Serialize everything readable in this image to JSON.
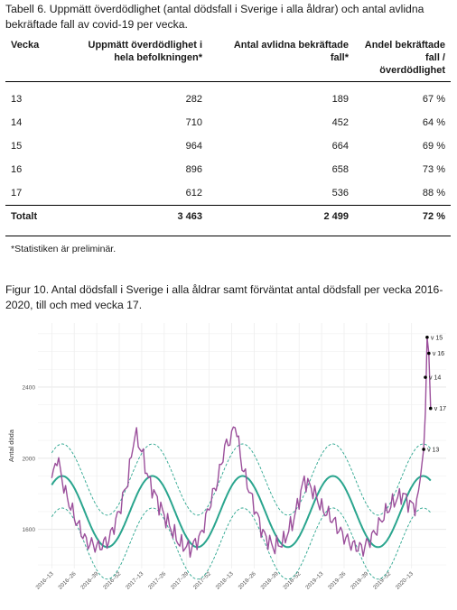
{
  "table": {
    "caption": "Tabell 6. Uppmätt överdödlighet (antal dödsfall i Sverige i alla åldrar) och antal avlidna bekräftade fall av covid-19 per vecka.",
    "headers": [
      "Vecka",
      "Uppmätt överdödlighet i hela befolkningen*",
      "Antal avlidna bekräftade fall*",
      "Andel bekräftade fall / överdödlighet"
    ],
    "rows": [
      [
        "13",
        "282",
        "189",
        "67 %"
      ],
      [
        "14",
        "710",
        "452",
        "64 %"
      ],
      [
        "15",
        "964",
        "664",
        "69 %"
      ],
      [
        "16",
        "896",
        "658",
        "73 %"
      ],
      [
        "17",
        "612",
        "536",
        "88 %"
      ]
    ],
    "total": [
      "Totalt",
      "3 463",
      "2 499",
      "72 %"
    ],
    "footnote": "*Statistiken är preliminär."
  },
  "figure": {
    "caption": "Figur 10. Antal dödsfall i Sverige i alla åldrar samt förväntat antal dödsfall per vecka 2016-2020, till och med vecka 17."
  },
  "chart_data": {
    "type": "line",
    "ylabel": "Antal döda",
    "ylim": [
      1380,
      2760
    ],
    "yticks": [
      1600,
      2000,
      2400
    ],
    "x_tick_labels": [
      "2016–13",
      "2016–26",
      "2016–39",
      "2016–52",
      "2017–13",
      "2017–26",
      "2017–39",
      "2017–52",
      "2018–13",
      "2018–26",
      "2018–39",
      "2018–52",
      "2019–13",
      "2019–26",
      "2019–39",
      "2019–52",
      "2020–13"
    ],
    "grid": true,
    "colors": {
      "observed": "#9b4f9b",
      "expected": "#2aa58e",
      "band": "#2aa58e"
    },
    "expected": {
      "mean": 1700,
      "amplitude": 200,
      "band_halfwidth": 180,
      "period_weeks": 52.18,
      "peak_week_offset": 6
    },
    "observed_key_points": [
      {
        "x": 0,
        "y": 1870
      },
      {
        "x": 3,
        "y": 2010
      },
      {
        "x": 8,
        "y": 1800
      },
      {
        "x": 14,
        "y": 1650
      },
      {
        "x": 20,
        "y": 1530
      },
      {
        "x": 27,
        "y": 1500
      },
      {
        "x": 33,
        "y": 1540
      },
      {
        "x": 39,
        "y": 1700
      },
      {
        "x": 44,
        "y": 1880
      },
      {
        "x": 48,
        "y": 2140
      },
      {
        "x": 52,
        "y": 2040
      },
      {
        "x": 56,
        "y": 1880
      },
      {
        "x": 62,
        "y": 1740
      },
      {
        "x": 68,
        "y": 1620
      },
      {
        "x": 74,
        "y": 1520
      },
      {
        "x": 80,
        "y": 1490
      },
      {
        "x": 86,
        "y": 1560
      },
      {
        "x": 92,
        "y": 1760
      },
      {
        "x": 96,
        "y": 1880
      },
      {
        "x": 100,
        "y": 2060
      },
      {
        "x": 104,
        "y": 2120
      },
      {
        "x": 106,
        "y": 2200
      },
      {
        "x": 110,
        "y": 1960
      },
      {
        "x": 116,
        "y": 1760
      },
      {
        "x": 122,
        "y": 1580
      },
      {
        "x": 128,
        "y": 1500
      },
      {
        "x": 134,
        "y": 1530
      },
      {
        "x": 140,
        "y": 1660
      },
      {
        "x": 146,
        "y": 1880
      },
      {
        "x": 151,
        "y": 1820
      },
      {
        "x": 156,
        "y": 1720
      },
      {
        "x": 162,
        "y": 1660
      },
      {
        "x": 168,
        "y": 1570
      },
      {
        "x": 174,
        "y": 1510
      },
      {
        "x": 180,
        "y": 1490
      },
      {
        "x": 186,
        "y": 1570
      },
      {
        "x": 192,
        "y": 1680
      },
      {
        "x": 198,
        "y": 1760
      },
      {
        "x": 203,
        "y": 1800
      },
      {
        "x": 207,
        "y": 1740
      },
      {
        "x": 211,
        "y": 1730
      },
      {
        "x": 215,
        "y": 2050
      },
      {
        "x": 216,
        "y": 2260
      },
      {
        "x": 217,
        "y": 2680
      },
      {
        "x": 218,
        "y": 2590
      },
      {
        "x": 219,
        "y": 2280
      }
    ],
    "annotations": [
      {
        "label": "v 13",
        "x": 215,
        "y": 2050
      },
      {
        "label": "v 14",
        "x": 216,
        "y": 2455
      },
      {
        "label": "v 15",
        "x": 217,
        "y": 2680
      },
      {
        "label": "v 16",
        "x": 218,
        "y": 2590
      },
      {
        "label": "v 17",
        "x": 219,
        "y": 2280
      }
    ],
    "x_range": [
      -8,
      228
    ]
  }
}
